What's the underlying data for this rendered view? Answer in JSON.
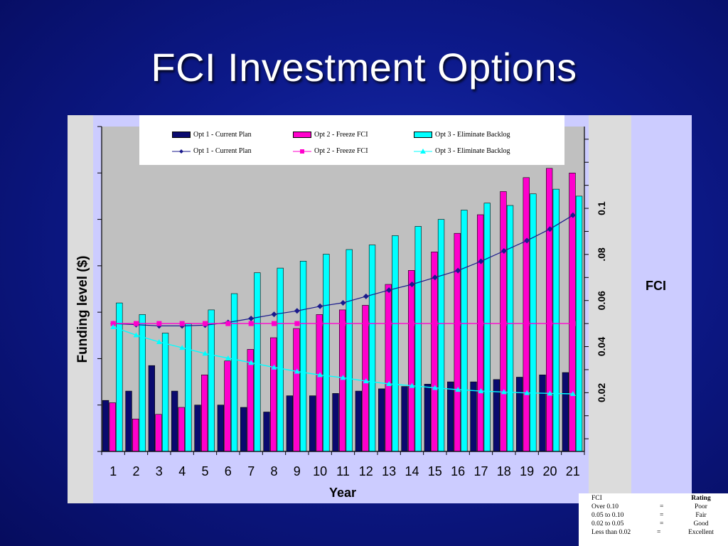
{
  "slide": {
    "title": "FCI Investment Options"
  },
  "side_label": "FCI",
  "legend": {
    "bars": [
      {
        "name": "Opt 1 - Current Plan",
        "color": "#0a0a6e"
      },
      {
        "name": "Opt 2 - Freeze FCI",
        "color": "#ff00cc"
      },
      {
        "name": "Opt 3 - Eliminate Backlog",
        "color": "#00ffff"
      }
    ],
    "lines": [
      {
        "name": "Opt 1 - Current Plan",
        "color": "#1a1a8c",
        "marker": "diamond"
      },
      {
        "name": "Opt 2 - Freeze FCI",
        "color": "#ff00cc",
        "marker": "square"
      },
      {
        "name": "Opt 3 - Eliminate Backlog",
        "color": "#00ffff",
        "marker": "triangle"
      }
    ]
  },
  "rating_table": {
    "headers": [
      "FCI",
      "Rating"
    ],
    "rows": [
      {
        "range": "Over 0.10",
        "eq": "=",
        "rating": "Poor"
      },
      {
        "range": "0.05 to 0.10",
        "eq": "=",
        "rating": "Fair"
      },
      {
        "range": "0.02 to 0.05",
        "eq": "=",
        "rating": "Good"
      },
      {
        "range": "Less than 0.02",
        "eq": "=",
        "rating": "Excellent"
      }
    ]
  },
  "chart_data": {
    "type": "bar",
    "xlabel": "Year",
    "ylabel": "Funding level ($)",
    "y2label": "",
    "categories": [
      "1",
      "2",
      "3",
      "4",
      "5",
      "6",
      "7",
      "8",
      "9",
      "10",
      "11",
      "12",
      "13",
      "14",
      "15",
      "16",
      "17",
      "18",
      "19",
      "20",
      "21"
    ],
    "bar_ylim": [
      0,
      7
    ],
    "bar_series": [
      {
        "name": "Opt 1 - Current Plan",
        "values": [
          1.1,
          1.3,
          1.85,
          1.3,
          1.0,
          1.0,
          0.95,
          0.85,
          1.2,
          1.2,
          1.25,
          1.3,
          1.35,
          1.4,
          1.45,
          1.5,
          1.5,
          1.55,
          1.6,
          1.65,
          1.7
        ]
      },
      {
        "name": "Opt 2 - Freeze FCI",
        "values": [
          1.05,
          0.7,
          0.8,
          0.95,
          1.65,
          1.95,
          2.2,
          2.45,
          2.65,
          2.95,
          3.05,
          3.15,
          3.6,
          3.9,
          4.3,
          4.7,
          5.1,
          5.6,
          5.9,
          6.1,
          6.0
        ]
      },
      {
        "name": "Opt 3 - Eliminate Backlog",
        "values": [
          3.2,
          2.95,
          2.55,
          2.75,
          3.05,
          3.4,
          3.85,
          3.95,
          4.1,
          4.25,
          4.35,
          4.45,
          4.65,
          4.85,
          5.0,
          5.2,
          5.35,
          5.3,
          5.55,
          5.65,
          5.5
        ]
      }
    ],
    "y2_ticks": [
      {
        "label": "0.02",
        "value": 0.02
      },
      {
        "label": "0.04",
        "value": 0.04
      },
      {
        "label": "0.06",
        "value": 0.06
      },
      {
        "label": ".08",
        "value": 0.08
      },
      {
        "label": "0.1",
        "value": 0.1
      }
    ],
    "y2lim": [
      -0.0055,
      0.1355
    ],
    "line_series": [
      {
        "name": "Opt 1 - Current Plan",
        "values": [
          0.05,
          0.0495,
          0.049,
          0.049,
          0.0493,
          0.0505,
          0.0522,
          0.054,
          0.0555,
          0.0575,
          0.059,
          0.0618,
          0.0645,
          0.067,
          0.07,
          0.073,
          0.077,
          0.0815,
          0.086,
          0.091,
          0.097
        ]
      },
      {
        "name": "Opt 2 - Freeze FCI",
        "values": [
          0.05,
          0.05,
          0.05,
          0.05,
          0.05,
          0.05,
          0.05,
          0.05,
          0.05,
          0.05,
          0.05,
          0.05,
          0.05,
          0.05,
          0.05,
          0.05,
          0.05,
          0.05,
          0.05,
          0.05,
          0.05
        ]
      },
      {
        "name": "Opt 3 - Eliminate Backlog",
        "values": [
          0.0485,
          0.045,
          0.042,
          0.0395,
          0.037,
          0.035,
          0.033,
          0.031,
          0.0292,
          0.0277,
          0.0265,
          0.025,
          0.0238,
          0.023,
          0.0221,
          0.0213,
          0.0207,
          0.0203,
          0.0199,
          0.0197,
          0.0195
        ]
      }
    ],
    "grid": false,
    "legend_position": "top"
  }
}
